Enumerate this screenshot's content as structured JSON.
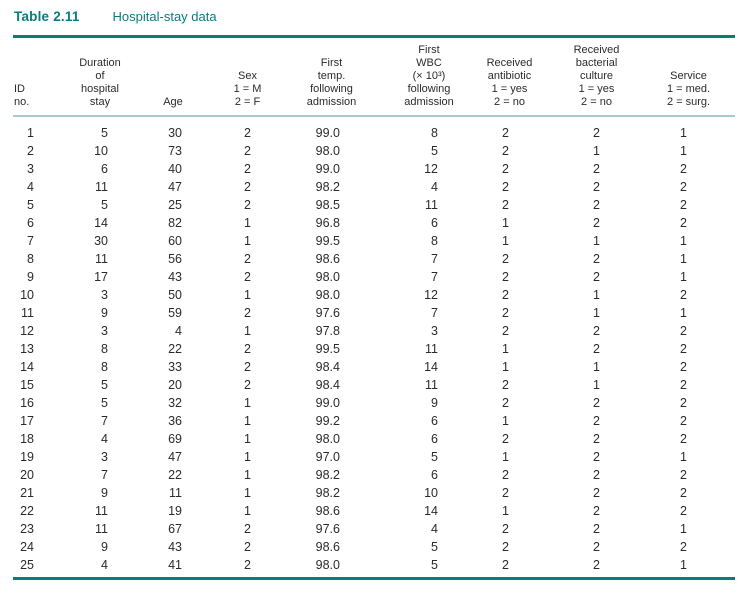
{
  "title": {
    "label": "Table 2.11",
    "caption": "Hospital-stay data"
  },
  "colors": {
    "accent_teal": "#077d7e",
    "header_rule_light_teal": "#a7c9c9",
    "text": "#2b2b2b",
    "background": "#ffffff"
  },
  "table": {
    "columns": [
      {
        "key": "id",
        "header": "ID\nno."
      },
      {
        "key": "duration",
        "header": "Duration\nof\nhospital\nstay"
      },
      {
        "key": "age",
        "header": "Age"
      },
      {
        "key": "sex",
        "header": "Sex\n1 = M\n2 = F"
      },
      {
        "key": "first_temp",
        "header": "First\ntemp.\nfollowing\nadmission"
      },
      {
        "key": "first_wbc",
        "header": "First\nWBC\n(× 10³)\nfollowing\nadmission"
      },
      {
        "key": "antibiotic",
        "header": "Received\nantibiotic\n1 = yes\n2 = no"
      },
      {
        "key": "bacterial_culture",
        "header": "Received\nbacterial\nculture\n1 = yes\n2 = no"
      },
      {
        "key": "service",
        "header": "Service\n1 = med.\n2 = surg."
      }
    ],
    "rows": [
      [
        1,
        5,
        30,
        2,
        "99.0",
        8,
        2,
        2,
        1
      ],
      [
        2,
        10,
        73,
        2,
        "98.0",
        5,
        2,
        1,
        1
      ],
      [
        3,
        6,
        40,
        2,
        "99.0",
        12,
        2,
        2,
        2
      ],
      [
        4,
        11,
        47,
        2,
        "98.2",
        4,
        2,
        2,
        2
      ],
      [
        5,
        5,
        25,
        2,
        "98.5",
        11,
        2,
        2,
        2
      ],
      [
        6,
        14,
        82,
        1,
        "96.8",
        6,
        1,
        2,
        2
      ],
      [
        7,
        30,
        60,
        1,
        "99.5",
        8,
        1,
        1,
        1
      ],
      [
        8,
        11,
        56,
        2,
        "98.6",
        7,
        2,
        2,
        1
      ],
      [
        9,
        17,
        43,
        2,
        "98.0",
        7,
        2,
        2,
        1
      ],
      [
        10,
        3,
        50,
        1,
        "98.0",
        12,
        2,
        1,
        2
      ],
      [
        11,
        9,
        59,
        2,
        "97.6",
        7,
        2,
        1,
        1
      ],
      [
        12,
        3,
        4,
        1,
        "97.8",
        3,
        2,
        2,
        2
      ],
      [
        13,
        8,
        22,
        2,
        "99.5",
        11,
        1,
        2,
        2
      ],
      [
        14,
        8,
        33,
        2,
        "98.4",
        14,
        1,
        1,
        2
      ],
      [
        15,
        5,
        20,
        2,
        "98.4",
        11,
        2,
        1,
        2
      ],
      [
        16,
        5,
        32,
        1,
        "99.0",
        9,
        2,
        2,
        2
      ],
      [
        17,
        7,
        36,
        1,
        "99.2",
        6,
        1,
        2,
        2
      ],
      [
        18,
        4,
        69,
        1,
        "98.0",
        6,
        2,
        2,
        2
      ],
      [
        19,
        3,
        47,
        1,
        "97.0",
        5,
        1,
        2,
        1
      ],
      [
        20,
        7,
        22,
        1,
        "98.2",
        6,
        2,
        2,
        2
      ],
      [
        21,
        9,
        11,
        1,
        "98.2",
        10,
        2,
        2,
        2
      ],
      [
        22,
        11,
        19,
        1,
        "98.6",
        14,
        1,
        2,
        2
      ],
      [
        23,
        11,
        67,
        2,
        "97.6",
        4,
        2,
        2,
        1
      ],
      [
        24,
        9,
        43,
        2,
        "98.6",
        5,
        2,
        2,
        2
      ],
      [
        25,
        4,
        41,
        2,
        "98.0",
        5,
        2,
        2,
        1
      ]
    ]
  }
}
